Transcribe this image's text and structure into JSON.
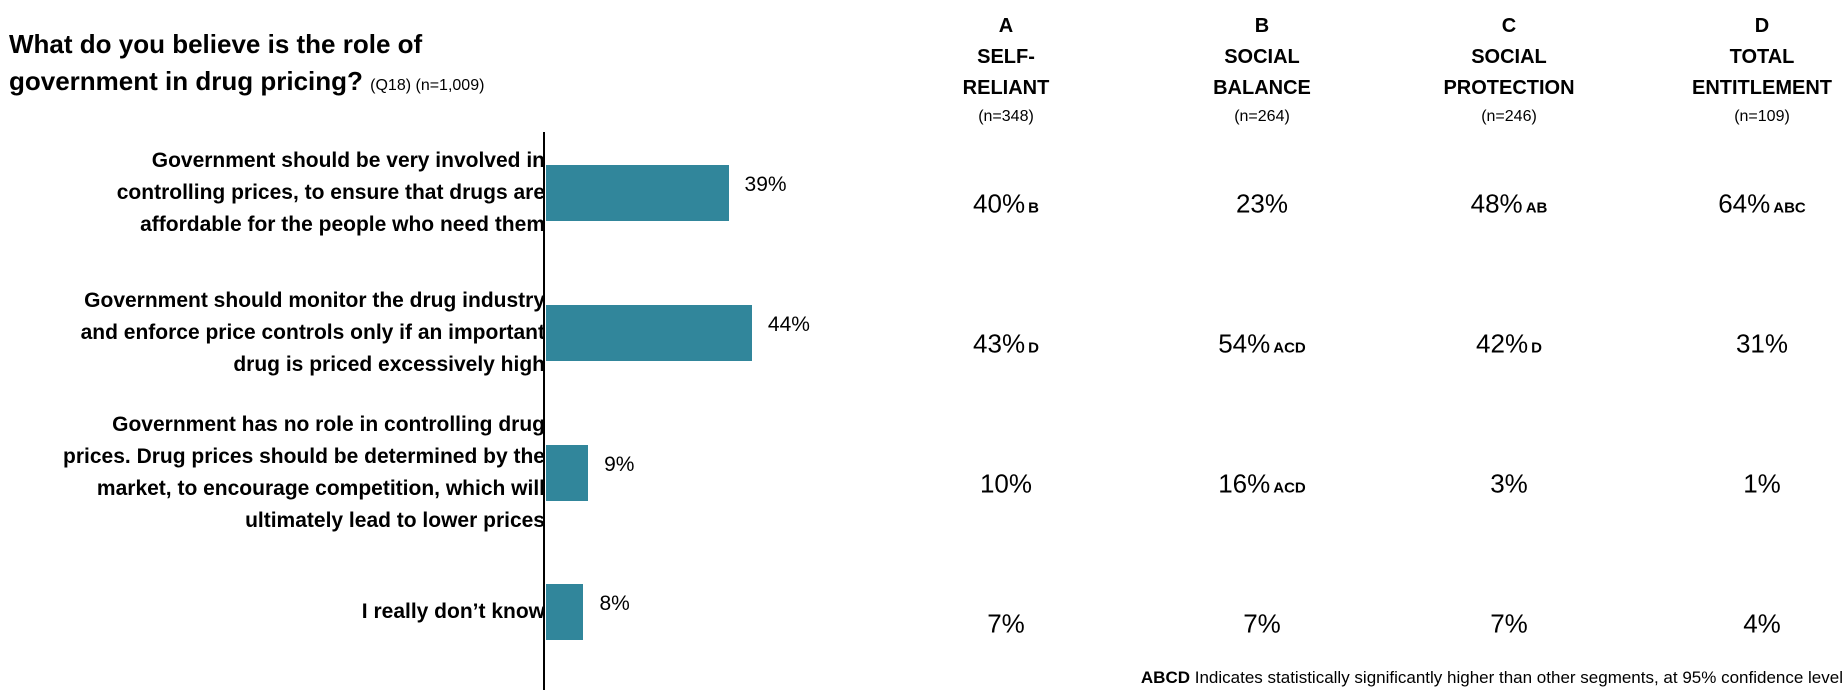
{
  "chart_data": {
    "type": "bar",
    "title": "What do you believe is the role of government in drug pricing?",
    "title_note": "(Q18) (n=1,009)",
    "categories": [
      "Government should be very involved in controlling prices, to ensure that drugs are affordable for the people who need them",
      "Government should monitor the drug industry and enforce price controls only if an important drug is priced excessively high",
      "Government has no role in controlling drug prices. Drug prices should be determined by the market, to encourage competition, which will ultimately lead to lower prices",
      "I really don’t know"
    ],
    "values": [
      39,
      44,
      9,
      8
    ],
    "value_labels": [
      "39%",
      "44%",
      "9%",
      "8%"
    ],
    "color": "#31869b"
  },
  "table": {
    "columns": [
      {
        "letter": "A",
        "name": "SELF-RELIANT",
        "n": "(n=348)"
      },
      {
        "letter": "B",
        "name": "SOCIAL BALANCE",
        "n": "(n=264)"
      },
      {
        "letter": "C",
        "name": "SOCIAL PROTECTION",
        "n": "(n=246)"
      },
      {
        "letter": "D",
        "name": "TOTAL ENTITLEMENT",
        "n": "(n=109)"
      }
    ],
    "rows": [
      [
        {
          "value": "40%",
          "sig": "B"
        },
        {
          "value": "23%"
        },
        {
          "value": "48%",
          "sig": "AB"
        },
        {
          "value": "64%",
          "sig": "ABC"
        }
      ],
      [
        {
          "value": "43%",
          "sig": "D"
        },
        {
          "value": "54%",
          "sig": "ACD"
        },
        {
          "value": "42%",
          "sig": "D"
        },
        {
          "value": "31%"
        }
      ],
      [
        {
          "value": "10%"
        },
        {
          "value": "16%",
          "sig": "ACD"
        },
        {
          "value": "3%"
        },
        {
          "value": "1%"
        }
      ],
      [
        {
          "value": "7%"
        },
        {
          "value": "7%"
        },
        {
          "value": "7%"
        },
        {
          "value": "4%"
        }
      ]
    ],
    "footnote_key": "ABCD",
    "footnote": "Indicates statistically significantly higher than other segments, at 95% confidence level"
  }
}
